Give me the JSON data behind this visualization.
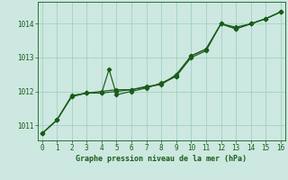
{
  "title": "Graphe pression niveau de la mer (hPa)",
  "bg_color": "#cce8e0",
  "grid_color": "#99ccbb",
  "line_color": "#1a5c1a",
  "xlim": [
    -0.3,
    16.3
  ],
  "ylim": [
    1010.55,
    1014.65
  ],
  "xticks": [
    0,
    1,
    2,
    3,
    4,
    5,
    6,
    7,
    8,
    9,
    10,
    11,
    12,
    13,
    14,
    15,
    16
  ],
  "yticks": [
    1011,
    1012,
    1013,
    1014
  ],
  "series1_x": [
    0,
    1,
    2,
    3,
    4,
    4.5,
    5,
    6,
    7,
    8,
    9,
    10,
    11,
    12,
    13,
    14,
    15,
    16
  ],
  "series1_y": [
    1010.75,
    1011.15,
    1011.85,
    1011.95,
    1011.95,
    1012.65,
    1011.9,
    1012.0,
    1012.1,
    1012.25,
    1012.45,
    1013.0,
    1013.2,
    1014.0,
    1013.85,
    1014.0,
    1014.15,
    1014.35
  ],
  "series2_x": [
    0,
    1,
    2,
    3,
    4,
    5,
    6,
    7,
    8,
    9,
    10,
    11,
    12,
    13,
    14,
    15,
    16
  ],
  "series2_y": [
    1010.75,
    1011.15,
    1011.85,
    1011.95,
    1011.95,
    1012.0,
    1012.05,
    1012.15,
    1012.2,
    1012.5,
    1013.05,
    1013.25,
    1014.0,
    1013.85,
    1014.0,
    1014.15,
    1014.35
  ],
  "series3_x": [
    0,
    1,
    2,
    3,
    4,
    5,
    6,
    7,
    8,
    9,
    10,
    11,
    12,
    13,
    14,
    15,
    16
  ],
  "series3_y": [
    1010.75,
    1011.15,
    1011.88,
    1011.95,
    1012.0,
    1012.05,
    1012.05,
    1012.12,
    1012.22,
    1012.45,
    1013.05,
    1013.25,
    1014.0,
    1013.9,
    1014.0,
    1014.15,
    1014.35
  ],
  "tick_fontsize": 5.5,
  "xlabel_fontsize": 6,
  "marker_size": 2.2,
  "line_width": 0.85
}
